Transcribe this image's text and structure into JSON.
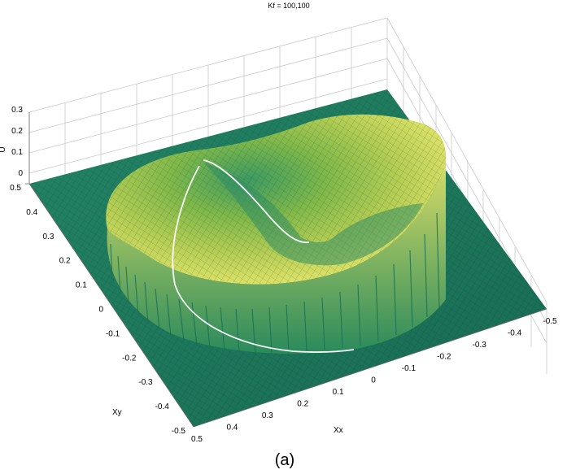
{
  "chart_data": {
    "type": "surface3d",
    "title": "Kf = 100,100",
    "xlabel": "Xx",
    "ylabel": "Xy",
    "zlabel": "U",
    "xlim": [
      -0.5,
      0.5
    ],
    "ylim": [
      -0.5,
      0.5
    ],
    "zlim": [
      0,
      0.3
    ],
    "x_ticks": [
      "0.5",
      "0.4",
      "0.3",
      "0.2",
      "0.1",
      "0",
      "-0.1",
      "-0.2",
      "-0.3",
      "-0.4",
      "-0.5"
    ],
    "y_ticks": [
      "0.5",
      "0.4",
      "0.3",
      "0.2",
      "0.1",
      "0",
      "-0.1",
      "-0.2",
      "-0.3",
      "-0.4",
      "-0.5"
    ],
    "z_ticks": [
      "0.3",
      "0.2",
      "0.1",
      "0"
    ],
    "grid": true,
    "colormap": "parula",
    "base_color": "#1e7a60",
    "peak_color": "#e6e870",
    "path_color": "#ffffff",
    "caption": "(a)"
  }
}
